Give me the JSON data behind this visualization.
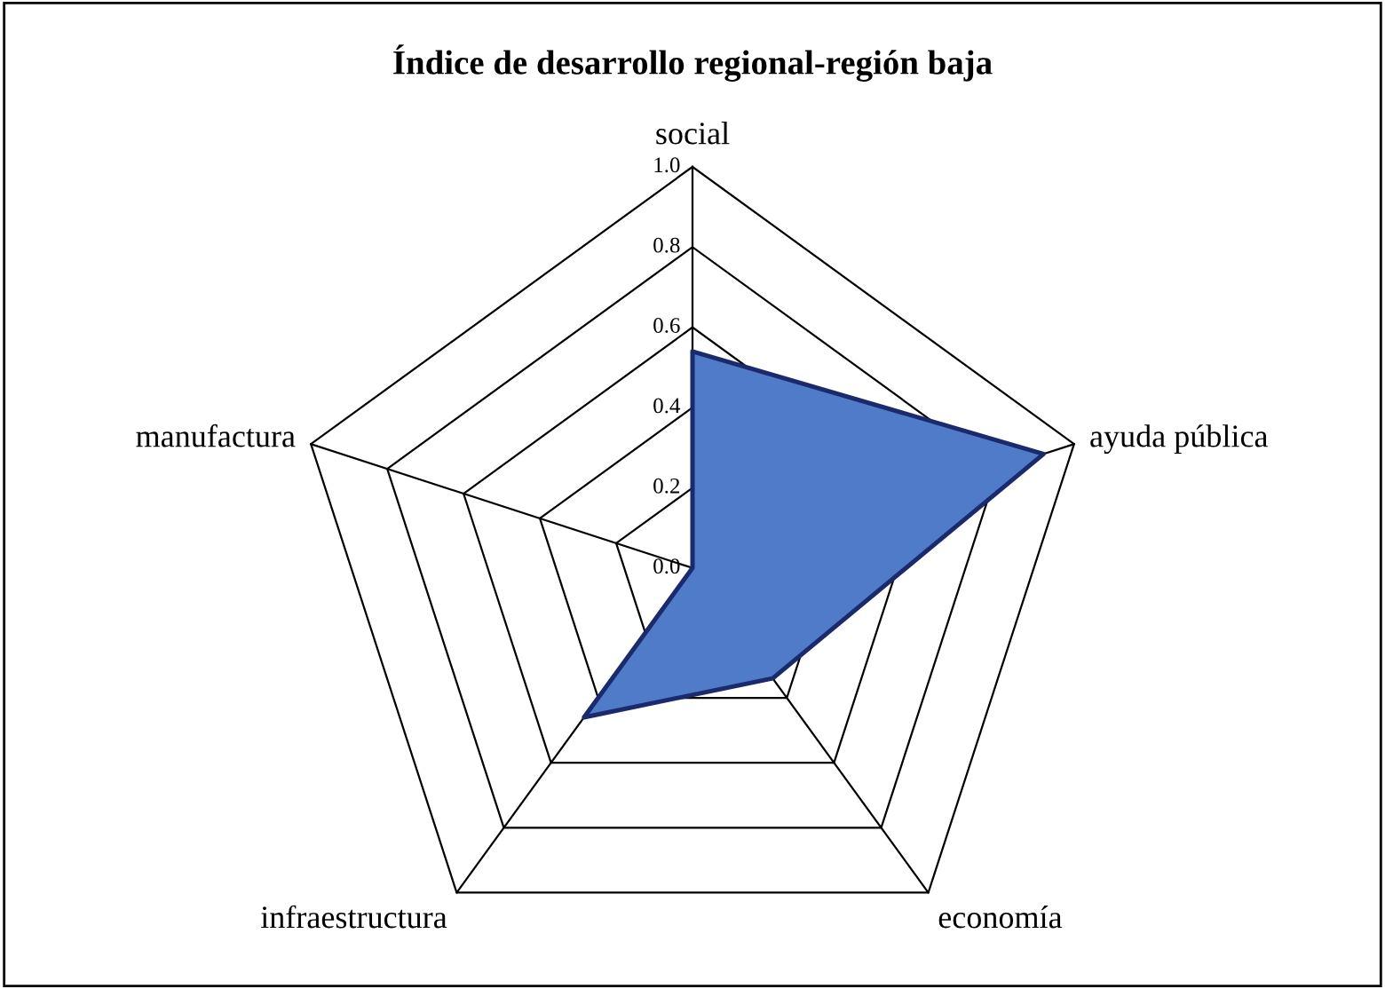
{
  "chart_data": {
    "type": "radar",
    "title": "Índice de desarrollo regional-región baja",
    "categories": [
      "social",
      "ayuda pública",
      "economía",
      "infraestructura",
      "manufactura"
    ],
    "series": [
      {
        "color": "#4f7bc8",
        "values": [
          0.54,
          0.92,
          0.34,
          0.46,
          0.0
        ]
      }
    ],
    "ylim": [
      0,
      1.0
    ],
    "yticks": [
      {
        "value": 0,
        "label": "0.0"
      },
      0.2,
      0.4,
      0.6,
      0.8,
      {
        "value": 1.0,
        "label": "1.0"
      }
    ],
    "grid": true
  }
}
